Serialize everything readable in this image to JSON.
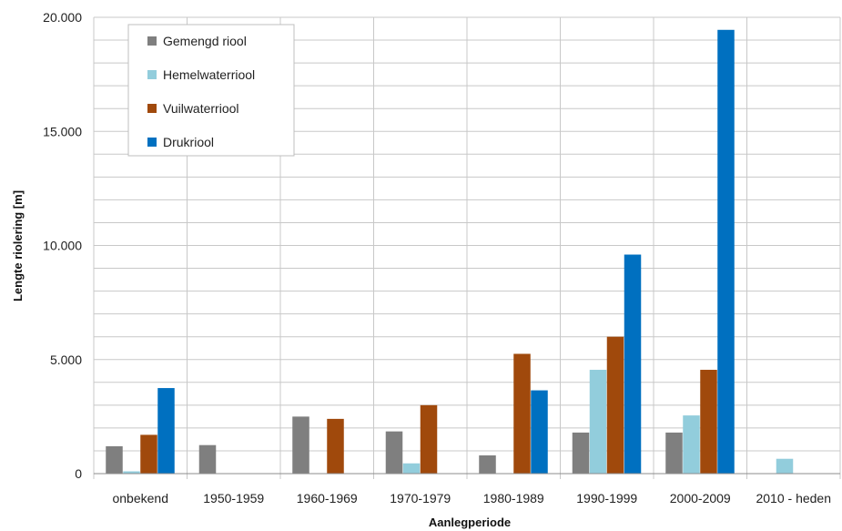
{
  "chart_data": {
    "type": "bar",
    "categories": [
      "onbekend",
      "1950-1959",
      "1960-1969",
      "1970-1979",
      "1980-1989",
      "1990-1999",
      "2000-2009",
      "2010 - heden"
    ],
    "series": [
      {
        "name": "Gemengd riool",
        "color": "#7f7f7f",
        "values": [
          1200,
          1250,
          2500,
          1850,
          800,
          1800,
          1800,
          0
        ]
      },
      {
        "name": "Hemelwaterriool",
        "color": "#92cddc",
        "values": [
          100,
          0,
          0,
          450,
          0,
          4550,
          2550,
          650
        ]
      },
      {
        "name": "Vuilwaterriool",
        "color": "#a0490c",
        "values": [
          1700,
          0,
          2400,
          3000,
          5250,
          6000,
          4550,
          0
        ]
      },
      {
        "name": "Drukriool",
        "color": "#0070c0",
        "values": [
          3750,
          0,
          0,
          0,
          3650,
          9600,
          19450,
          0
        ]
      }
    ],
    "xlabel": "Aanlegperiode",
    "ylabel": "Lengte riolering [m]",
    "ylim": [
      0,
      20000
    ],
    "yticks": [
      0,
      5000,
      10000,
      15000,
      20000
    ],
    "ytick_labels": [
      "0",
      "5.000",
      "10.000",
      "15.000",
      "20.000"
    ],
    "minor_grid_step": 1000,
    "grid": true,
    "legend_position": "top-left"
  }
}
